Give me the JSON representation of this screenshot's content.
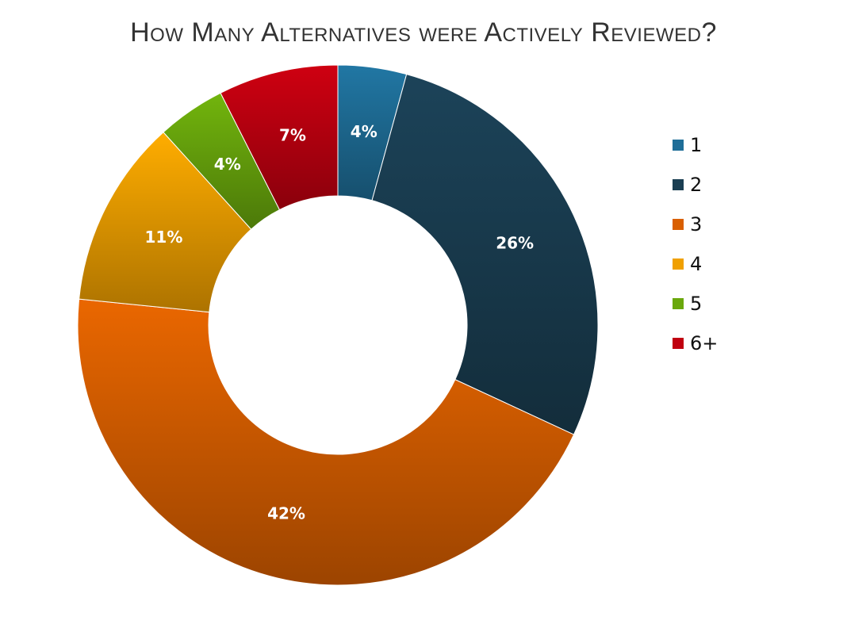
{
  "chart_data": {
    "type": "pie",
    "variant": "donut",
    "title": "How Many Alternatives were Actively Reviewed?",
    "categories": [
      "1",
      "2",
      "3",
      "4",
      "5",
      "6+"
    ],
    "values": [
      4,
      26,
      42,
      11,
      4,
      7
    ],
    "labels": [
      "4%",
      "26%",
      "42%",
      "11%",
      "4%",
      "7%"
    ],
    "colors": [
      "#1f6e98",
      "#1a3e52",
      "#d95f00",
      "#f0a000",
      "#6aa80c",
      "#c00010"
    ],
    "legend_position": "right"
  }
}
